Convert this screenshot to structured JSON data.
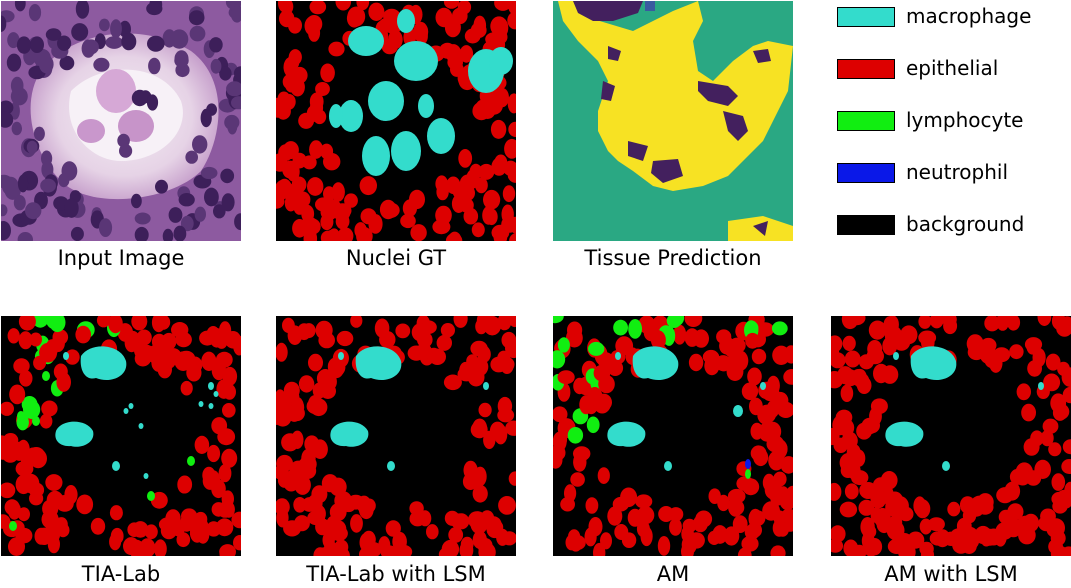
{
  "colors": {
    "macrophage": "#33dccc",
    "epithelial": "#dd0000",
    "lymphocyte": "#11ee11",
    "neutrophil": "#0a18e8",
    "background": "#000000",
    "tissue_bg": "#2aa883",
    "tissue_main": "#f7e223",
    "tissue_dark": "#43205e",
    "tissue_blue": "#3a5aa0"
  },
  "panels": [
    {
      "id": "input",
      "caption": "Input Image"
    },
    {
      "id": "gt",
      "caption": "Nuclei GT"
    },
    {
      "id": "tissue",
      "caption": "Tissue Prediction"
    },
    {
      "id": "tialab",
      "caption": "TIA-Lab"
    },
    {
      "id": "tialab_lsm",
      "caption": "TIA-Lab with LSM"
    },
    {
      "id": "am",
      "caption": "AM"
    },
    {
      "id": "am_lsm",
      "caption": "AM with LSM"
    }
  ],
  "legend": [
    {
      "label": "macrophage",
      "color": "#33dccc"
    },
    {
      "label": "epithelial",
      "color": "#dd0000"
    },
    {
      "label": "lymphocyte",
      "color": "#11ee11"
    },
    {
      "label": "neutrophil",
      "color": "#0a18e8"
    },
    {
      "label": "background",
      "color": "#000000"
    }
  ]
}
